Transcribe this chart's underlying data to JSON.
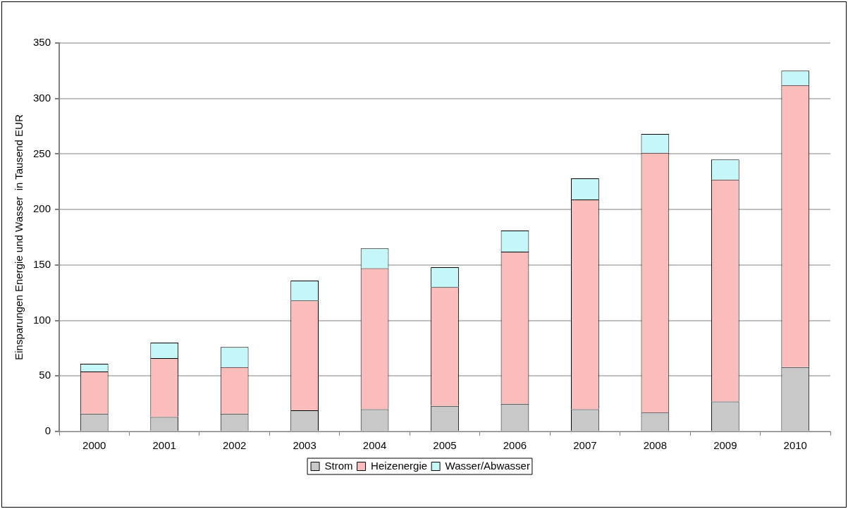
{
  "chart_data": {
    "type": "bar",
    "stacked": true,
    "ylabel": "Einsparungen Energie und Wasser  in Tausend EUR",
    "categories": [
      "2000",
      "2001",
      "2002",
      "2003",
      "2004",
      "2005",
      "2006",
      "2007",
      "2008",
      "2009",
      "2010"
    ],
    "series": [
      {
        "name": "Strom",
        "color": "#c8c8c8",
        "values": [
          16,
          13,
          16,
          19,
          20,
          23,
          25,
          20,
          17,
          27,
          58
        ]
      },
      {
        "name": "Heizenergie",
        "color": "#fbbcbc",
        "values": [
          38,
          53,
          42,
          99,
          127,
          107,
          137,
          189,
          234,
          200,
          254
        ]
      },
      {
        "name": "Wasser/Abwasser",
        "color": "#c5f7f9",
        "values": [
          7,
          14,
          18,
          18,
          18,
          18,
          19,
          19,
          17,
          18,
          13
        ]
      }
    ],
    "ylim": [
      0,
      350
    ],
    "yticks": [
      0,
      50,
      100,
      150,
      200,
      250,
      300,
      350
    ],
    "grid": "y",
    "legend": "bottom"
  }
}
